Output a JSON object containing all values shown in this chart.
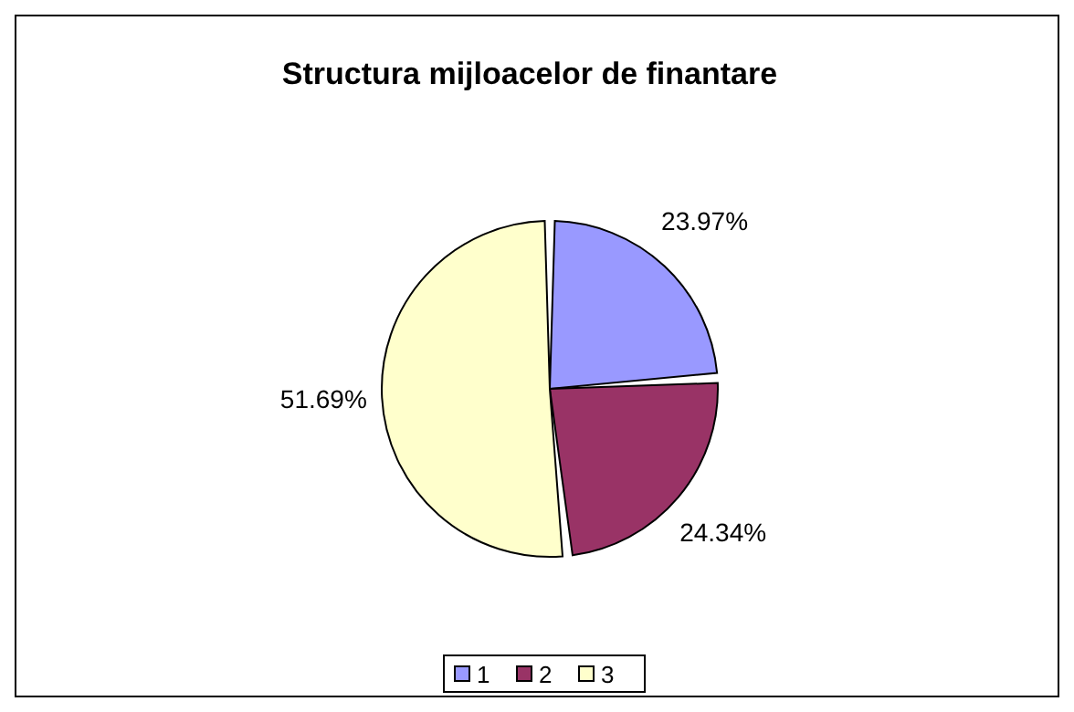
{
  "chart_data": {
    "type": "pie",
    "title": "Structura mijloacelor de finantare",
    "categories": [
      "1",
      "2",
      "3"
    ],
    "values": [
      23.97,
      24.34,
      51.69
    ],
    "colors": [
      "#9999ff",
      "#993366",
      "#ffffcc"
    ],
    "value_labels": [
      "23.97%",
      "24.34%",
      "51.69%"
    ],
    "legend": "bottom"
  }
}
